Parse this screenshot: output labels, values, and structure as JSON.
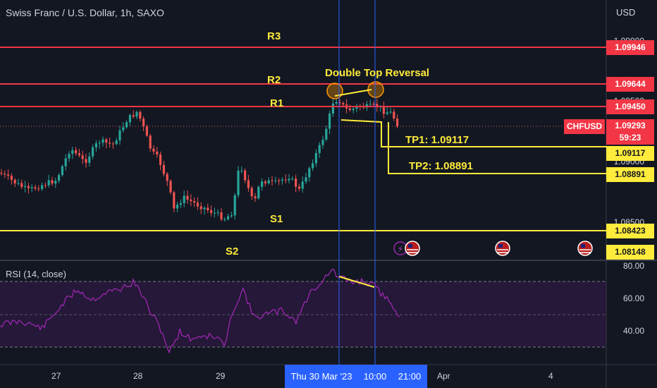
{
  "header": {
    "title": "Swiss Franc / U.S. Dollar, 1h, SAXO",
    "currency": "USD"
  },
  "price_axis": {
    "gridlines": [
      "1.09900",
      "1.09500",
      "1.09000",
      "1.08500"
    ],
    "labels": [
      {
        "name": "r3",
        "value": "1.09946",
        "style": "red"
      },
      {
        "name": "r2",
        "value": "1.09644",
        "style": "red"
      },
      {
        "name": "r1",
        "value": "1.09450",
        "style": "red"
      },
      {
        "name": "tp1",
        "value": "1.09117",
        "style": "yel"
      },
      {
        "name": "tp2",
        "value": "1.08891",
        "style": "yel"
      },
      {
        "name": "s1",
        "value": "1.08423",
        "style": "yel"
      },
      {
        "name": "s2",
        "value": "1.08148",
        "style": "yel"
      }
    ],
    "symbol_tag": "CHFUSD",
    "current_price": "1.09293",
    "countdown": "59:23"
  },
  "levels": {
    "r3": "R3",
    "r2": "R2",
    "r1": "R1",
    "s1": "S1",
    "s2": "S2"
  },
  "annotations": {
    "pattern": "Double Top Reversal",
    "tp1": "TP1: 1.09117",
    "tp2": "TP2: 1.08891"
  },
  "rsi": {
    "label": "RSI (14, close)",
    "axis": [
      "80.00",
      "60.00",
      "40.00"
    ]
  },
  "time_axis": {
    "labels": [
      "27",
      "28",
      "29",
      "Apr",
      "4"
    ],
    "selected_date": "Thu 30 Mar '23",
    "selected_time": "10:00",
    "next_time": "21:00"
  },
  "colors": {
    "up": "#26a69a",
    "down": "#ef5350",
    "resistance": "#f23645",
    "support": "#ffeb3b",
    "rsi": "#9c27b0",
    "crosshair": "#2962ff"
  }
}
